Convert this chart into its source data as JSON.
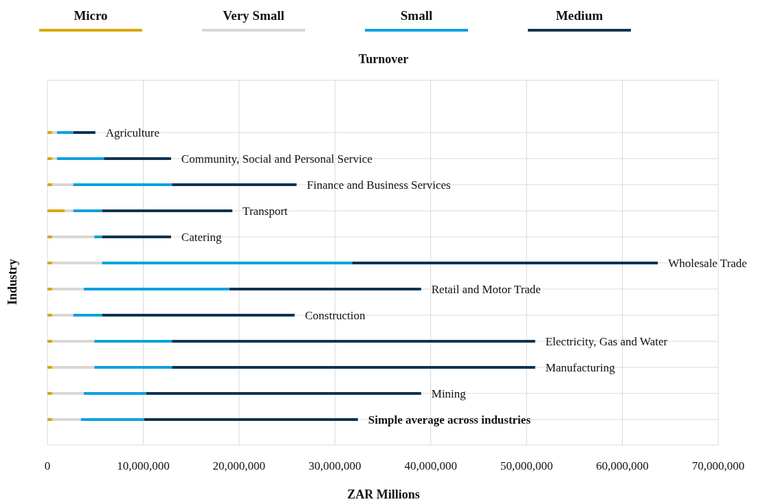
{
  "chart_data": {
    "type": "bar",
    "orientation": "horizontal",
    "stacked": true,
    "title": "Turnover",
    "xlabel": "ZAR Millions",
    "ylabel": "Industry",
    "legend": "top",
    "grid": true,
    "tick_labels": "x",
    "categories": [
      "Agriculture",
      "Community, Social and Personal Service",
      "Finance and Business Services",
      "Transport",
      "Catering",
      "Wholesale Trade",
      "Retail and Motor Trade",
      "Construction",
      "Electricity, Gas and Water",
      "Manufacturing",
      "Mining",
      "Simple average across industries"
    ],
    "xlim": [
      0,
      70000000
    ],
    "xticks": [
      0,
      {
        "value": 10000000,
        "label": "10,000,000"
      },
      {
        "value": 20000000,
        "label": "20,000,000"
      },
      {
        "value": 30000000,
        "label": "30,000,000"
      },
      {
        "value": 40000000,
        "label": "40,000,000"
      },
      {
        "value": 50000000,
        "label": "50,000,000"
      },
      {
        "value": 60000000,
        "label": "60,000,000"
      },
      {
        "value": 70000000,
        "label": "70,000,000"
      }
    ],
    "series": [
      {
        "name": "Micro",
        "color": "#d9a800",
        "values": [
          500000,
          500000,
          500000,
          1800000,
          500000,
          500000,
          500000,
          500000,
          500000,
          500000,
          500000,
          500000
        ]
      },
      {
        "name": "Very Small",
        "color": "#dcd6d2",
        "values": [
          500000,
          500000,
          2200000,
          900000,
          4400000,
          5200000,
          3300000,
          2200000,
          4400000,
          4400000,
          3300000,
          3000000
        ]
      },
      {
        "name": "Small",
        "color": "#0aa0e0",
        "values": [
          1700000,
          4900000,
          10300000,
          3000000,
          800000,
          26100000,
          15200000,
          3000000,
          8100000,
          8100000,
          6500000,
          6600000
        ]
      },
      {
        "name": "Medium",
        "color": "#0e3350",
        "values": [
          2300000,
          7000000,
          13000000,
          13600000,
          7200000,
          31900000,
          20000000,
          20100000,
          37900000,
          37900000,
          28700000,
          22300000
        ]
      }
    ]
  }
}
